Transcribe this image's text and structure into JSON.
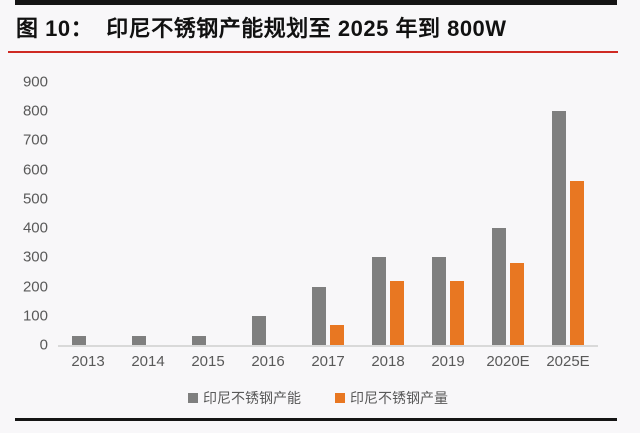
{
  "page": {
    "title": "图 10：  印尼不锈钢产能规划至 2025 年到 800W"
  },
  "colors": {
    "background": "#f8f7f9",
    "capacity_bar": "#7f7f7f",
    "output_bar": "#e87722",
    "axis_text": "#595959",
    "axis_line": "#d9d9d9",
    "title_text": "#111111",
    "title_rule": "#cf2a23",
    "frame_rule": "#151515"
  },
  "chart_data": {
    "type": "bar",
    "title": "图 10：印尼不锈钢产能规划至 2025 年到 800W",
    "categories": [
      "2013",
      "2014",
      "2015",
      "2016",
      "2017",
      "2018",
      "2019",
      "2020E",
      "2025E"
    ],
    "series": [
      {
        "name": "印尼不锈钢产能",
        "color": "#7f7f7f",
        "values": [
          30,
          30,
          30,
          100,
          200,
          300,
          300,
          400,
          800
        ]
      },
      {
        "name": "印尼不锈钢产量",
        "color": "#e87722",
        "values": [
          0,
          0,
          0,
          0,
          70,
          220,
          220,
          280,
          560
        ]
      }
    ],
    "xlabel": "",
    "ylabel": "",
    "ylim": [
      0,
      900
    ],
    "yticks": [
      900,
      800,
      700,
      600,
      500,
      400,
      300,
      200,
      100,
      0
    ],
    "grid": false,
    "legend_position": "bottom"
  }
}
